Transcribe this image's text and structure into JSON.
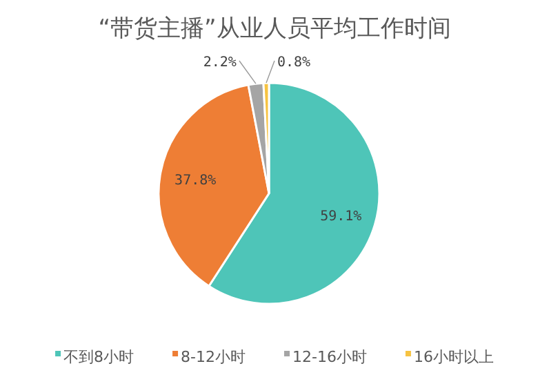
{
  "chart_data": {
    "type": "pie",
    "title": "“带货主播”从业人员平均工作时间",
    "categories": [
      "不到8小时",
      "8-12小时",
      "12-16小时",
      "16小时以上"
    ],
    "values": [
      59.1,
      37.8,
      2.2,
      0.8
    ],
    "value_labels": [
      "59.1%",
      "37.8%",
      "2.2%",
      "0.8%"
    ],
    "colors": [
      "#4ec5b8",
      "#ee7e35",
      "#a5a5a5",
      "#f6c342"
    ],
    "legend": "bottom"
  }
}
